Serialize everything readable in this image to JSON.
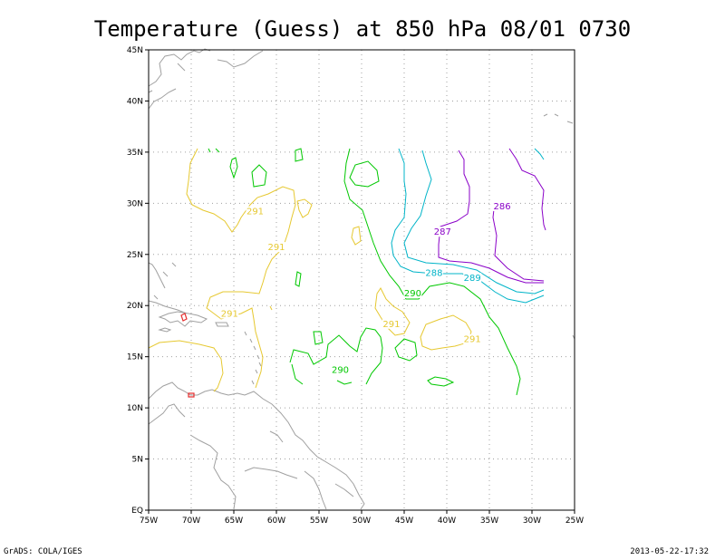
{
  "title": "Temperature (Guess) at 850 hPa 08/01 0730",
  "footer": {
    "left": "GrADS: COLA/IGES",
    "right": "2013-05-22-17:32"
  },
  "axes": {
    "x_ticks": [
      "75W",
      "70W",
      "65W",
      "60W",
      "55W",
      "50W",
      "45W",
      "40W",
      "35W",
      "30W",
      "25W"
    ],
    "y_ticks": [
      "EQ",
      "5N",
      "10N",
      "15N",
      "20N",
      "25N",
      "30N",
      "35N",
      "40N",
      "45N"
    ],
    "lon_range": [
      -75,
      -25
    ],
    "lat_range": [
      0,
      45
    ]
  },
  "colors": {
    "c286": "#8a00c8",
    "c287": "#8a00c8",
    "c289": "#00b4c8",
    "c288": "#00b4c8",
    "c290": "#00c800",
    "c291": "#e6c830",
    "c292": "#e63030",
    "coast": "#a0a0a0"
  },
  "contour_labels": [
    {
      "text": "286",
      "lon": -33.5,
      "lat": 29.5,
      "color": "#8a00c8"
    },
    {
      "text": "287",
      "lon": -40.5,
      "lat": 27.0,
      "color": "#8a00c8"
    },
    {
      "text": "288",
      "lon": -41.5,
      "lat": 23.0,
      "color": "#00b4c8"
    },
    {
      "text": "289",
      "lon": -37.0,
      "lat": 22.5,
      "color": "#00b4c8"
    },
    {
      "text": "290",
      "lon": -44.0,
      "lat": 21.0,
      "color": "#00c800"
    },
    {
      "text": "290",
      "lon": -52.5,
      "lat": 13.5,
      "color": "#00c800"
    },
    {
      "text": "291",
      "lon": -62.5,
      "lat": 29.0,
      "color": "#e6c830"
    },
    {
      "text": "291",
      "lon": -60.0,
      "lat": 25.5,
      "color": "#e6c830"
    },
    {
      "text": "291",
      "lon": -65.5,
      "lat": 19.0,
      "color": "#e6c830"
    },
    {
      "text": "291",
      "lon": -46.5,
      "lat": 18.0,
      "color": "#e6c830"
    },
    {
      "text": "291",
      "lon": -37.0,
      "lat": 16.5,
      "color": "#e6c830"
    }
  ]
}
